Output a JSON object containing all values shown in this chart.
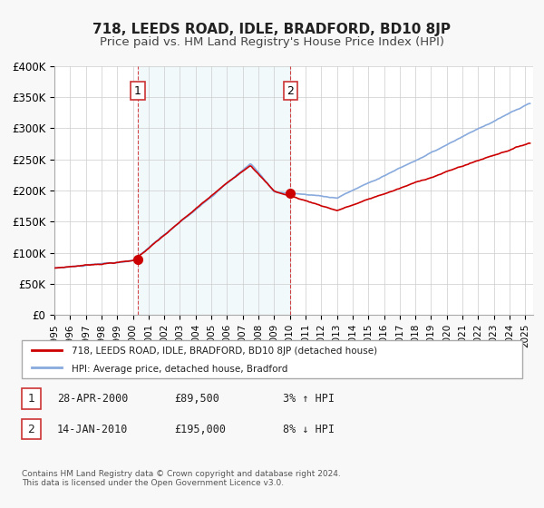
{
  "title": "718, LEEDS ROAD, IDLE, BRADFORD, BD10 8JP",
  "subtitle": "Price paid vs. HM Land Registry's House Price Index (HPI)",
  "xlabel": "",
  "ylabel": "",
  "ylim": [
    0,
    400000
  ],
  "yticks": [
    0,
    50000,
    100000,
    150000,
    200000,
    250000,
    300000,
    350000,
    400000
  ],
  "ytick_labels": [
    "£0",
    "£50K",
    "£100K",
    "£150K",
    "£200K",
    "£250K",
    "£300K",
    "£350K",
    "£400K"
  ],
  "xlim_start": 1995.0,
  "xlim_end": 2025.5,
  "background_color": "#f0f4f8",
  "plot_bg_color": "#ffffff",
  "grid_color": "#cccccc",
  "sale1_date": 2000.32,
  "sale1_price": 89500,
  "sale2_date": 2010.04,
  "sale2_price": 195000,
  "marker1_label": "1",
  "marker2_label": "2",
  "vline1_x": 2000.32,
  "vline2_x": 2010.04,
  "property_line_color": "#cc0000",
  "hpi_line_color": "#88aadd",
  "legend_property_label": "718, LEEDS ROAD, IDLE, BRADFORD, BD10 8JP (detached house)",
  "legend_hpi_label": "HPI: Average price, detached house, Bradford",
  "table_row1": [
    "1",
    "28-APR-2000",
    "£89,500",
    "3% ↑ HPI"
  ],
  "table_row2": [
    "2",
    "14-JAN-2010",
    "£195,000",
    "8% ↓ HPI"
  ],
  "footer_text": "Contains HM Land Registry data © Crown copyright and database right 2024.\nThis data is licensed under the Open Government Licence v3.0.",
  "title_fontsize": 11,
  "subtitle_fontsize": 9.5
}
